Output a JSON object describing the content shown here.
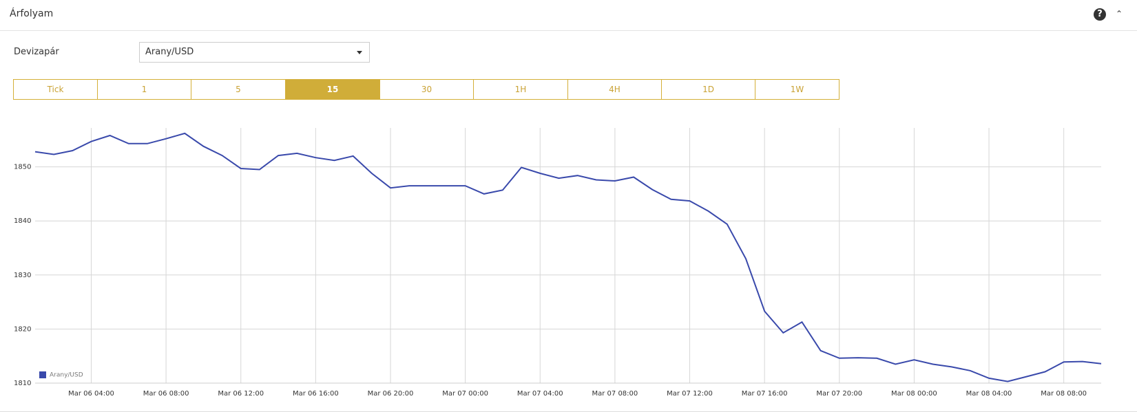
{
  "header": {
    "title": "Árfolyam"
  },
  "form": {
    "label": "Devizapár",
    "value": "Arany/USD"
  },
  "timeframes": {
    "buttons": [
      "Tick",
      "1",
      "5",
      "15",
      "30",
      "1H",
      "4H",
      "1D",
      "1W"
    ],
    "selected": 3
  },
  "chart_data": {
    "type": "line",
    "x": [
      "Mar 06 01:00",
      "Mar 06 02:00",
      "Mar 06 03:00",
      "Mar 06 04:00",
      "Mar 06 05:00",
      "Mar 06 06:00",
      "Mar 06 07:00",
      "Mar 06 08:00",
      "Mar 06 09:00",
      "Mar 06 10:00",
      "Mar 06 11:00",
      "Mar 06 12:00",
      "Mar 06 13:00",
      "Mar 06 14:00",
      "Mar 06 15:00",
      "Mar 06 16:00",
      "Mar 06 17:00",
      "Mar 06 18:00",
      "Mar 06 19:00",
      "Mar 06 20:00",
      "Mar 06 21:00",
      "Mar 06 22:00",
      "Mar 06 23:00",
      "Mar 07 00:00",
      "Mar 07 01:00",
      "Mar 07 02:00",
      "Mar 07 03:00",
      "Mar 07 04:00",
      "Mar 07 05:00",
      "Mar 07 06:00",
      "Mar 07 07:00",
      "Mar 07 08:00",
      "Mar 07 09:00",
      "Mar 07 10:00",
      "Mar 07 11:00",
      "Mar 07 12:00",
      "Mar 07 13:00",
      "Mar 07 14:00",
      "Mar 07 15:00",
      "Mar 07 16:00",
      "Mar 07 17:00",
      "Mar 07 18:00",
      "Mar 07 19:00",
      "Mar 07 20:00",
      "Mar 07 21:00",
      "Mar 07 22:00",
      "Mar 07 23:00",
      "Mar 08 00:00",
      "Mar 08 01:00",
      "Mar 08 02:00",
      "Mar 08 03:00",
      "Mar 08 04:00",
      "Mar 08 05:00",
      "Mar 08 06:00",
      "Mar 08 07:00",
      "Mar 08 08:00",
      "Mar 08 09:00",
      "Mar 08 10:00"
    ],
    "series": [
      {
        "name": "Arany/USD",
        "color": "#3949ab",
        "values": [
          1852.8,
          1852.3,
          1853,
          1854.7,
          1855.8,
          1854.3,
          1854.3,
          1855.2,
          1856.2,
          1853.8,
          1852.1,
          1849.7,
          1849.5,
          1852.1,
          1852.5,
          1851.7,
          1851.2,
          1852.0,
          1848.8,
          1846.1,
          1846.5,
          1846.5,
          1846.5,
          1846.5,
          1845.0,
          1845.7,
          1849.9,
          1848.8,
          1847.9,
          1848.4,
          1847.6,
          1847.4,
          1848.1,
          1845.8,
          1844.0,
          1843.7,
          1841.8,
          1839.4,
          1833.0,
          1823.3,
          1819.3,
          1821.3,
          1816.0,
          1814.6,
          1814.7,
          1814.6,
          1813.5,
          1814.3,
          1813.5,
          1813.0,
          1812.3,
          1810.9,
          1810.3,
          1811.2,
          1812.1,
          1813.9,
          1814.0,
          1813.6
        ]
      }
    ],
    "xticks": [
      "Mar 06 04:00",
      "Mar 06 08:00",
      "Mar 06 12:00",
      "Mar 06 16:00",
      "Mar 06 20:00",
      "Mar 07 00:00",
      "Mar 07 04:00",
      "Mar 07 08:00",
      "Mar 07 12:00",
      "Mar 07 16:00",
      "Mar 07 20:00",
      "Mar 08 00:00",
      "Mar 08 04:00",
      "Mar 08 08:00"
    ],
    "ylim": [
      1810,
      1857.2
    ],
    "yticks": [
      1810,
      1820,
      1830,
      1840,
      1850
    ],
    "grid": true,
    "legend": "bottom-left"
  }
}
